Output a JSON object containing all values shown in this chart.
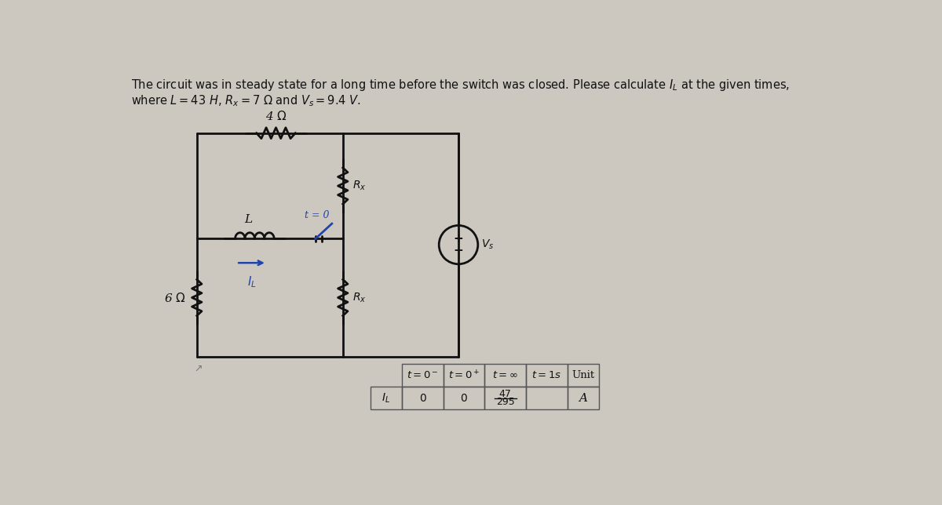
{
  "bg_color": "#ccc8c0",
  "title_line1": "The circuit was in steady state for a long time before the switch was closed. Please calculate $I_L$ at the given times,",
  "title_line2": "where $L = 43$ $H$, $R_x = 7$ $\\Omega$ and $V_s = 9.4$ $V$.",
  "resistor_top_label": "4 $\\Omega$",
  "inductor_label": "L",
  "switch_label": "t = 0",
  "rx_top_label": "$R_x$",
  "rx_bot_label": "$R_x$",
  "vs_label": "$V_s$",
  "il_label": "$I_L$",
  "left_res_label": "6 $\\Omega$",
  "col_headers_raw": "t=0^- t=0^+ t=inf t=1s Unit",
  "row_label": "$I_L$",
  "row_values": [
    "0",
    "0",
    "47/295",
    "",
    "A"
  ],
  "text_color": "#111111",
  "circuit_color": "#111111",
  "blue_color": "#2244aa",
  "table_border_color": "#555555"
}
